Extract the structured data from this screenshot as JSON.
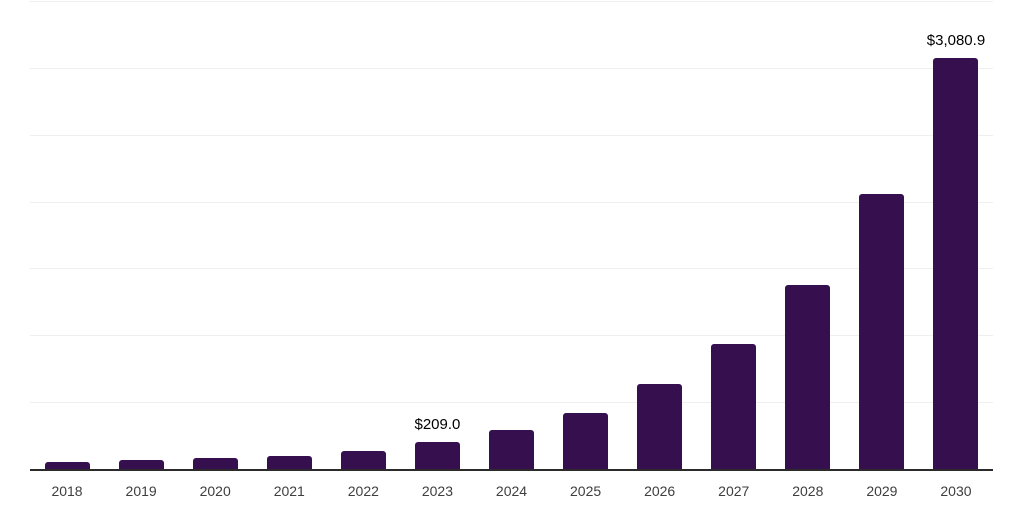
{
  "chart_data": {
    "type": "bar",
    "title": "",
    "xlabel": "",
    "ylabel": "",
    "categories": [
      "2018",
      "2019",
      "2020",
      "2021",
      "2022",
      "2023",
      "2024",
      "2025",
      "2026",
      "2027",
      "2028",
      "2029",
      "2030"
    ],
    "values": [
      63,
      72,
      88,
      104,
      145,
      209.0,
      296,
      430,
      640,
      940,
      1380,
      2062,
      3080.9
    ],
    "data_labels": [
      "",
      "",
      "",
      "",
      "",
      "$209.0",
      "",
      "",
      "",
      "",
      "",
      "",
      "$3,080.9"
    ],
    "ylim": [
      0,
      3500
    ],
    "gridline_interval": 500,
    "grid": "horizontal",
    "legend": "none",
    "y_axis_ticks_visible": false,
    "colors": {
      "bar": "#36104E",
      "axis_line": "#2B2B2B",
      "gridline": "#EFEFEF",
      "tick_label": "#3E3E3E",
      "value_label": "#000000",
      "background": "#FFFFFF"
    }
  }
}
